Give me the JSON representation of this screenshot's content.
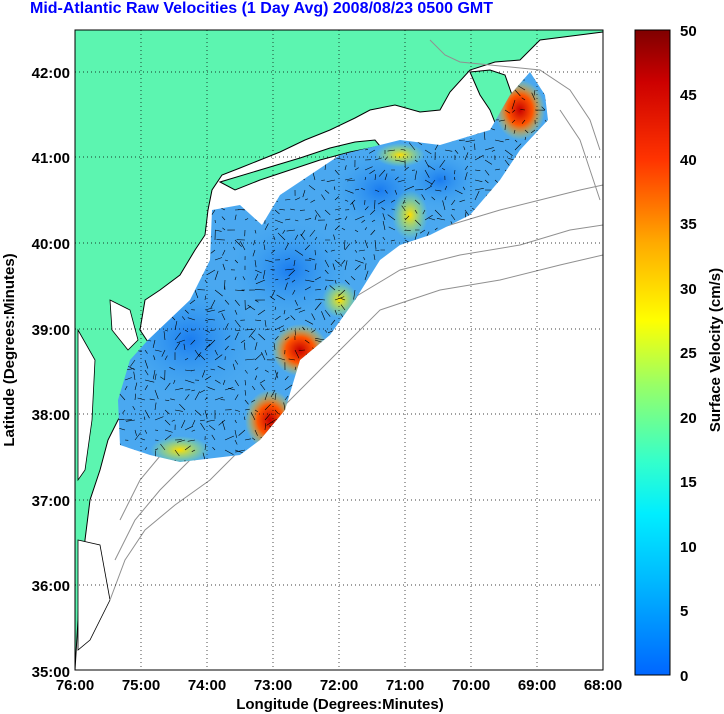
{
  "title": "Mid-Atlantic Raw Velocities (1 Day Avg) 2008/08/23 0500 GMT",
  "map": {
    "xlabel": "Longitude (Degrees:Minutes)",
    "ylabel": "Latitude (Degrees:Minutes)",
    "x_ticks": [
      "76:00",
      "75:00",
      "74:00",
      "73:00",
      "72:00",
      "71:00",
      "70:00",
      "69:00",
      "68:00"
    ],
    "y_ticks": [
      "42:00",
      "41:00",
      "40:00",
      "39:00",
      "38:00",
      "37:00",
      "36:00",
      "35:00"
    ],
    "lon_range": [
      -76,
      -68
    ],
    "lat_range": [
      35,
      42.5
    ],
    "grid": "dotted",
    "land_color": "#5cf5b0",
    "ocean_color": "#ffffff",
    "bathymetry_color": "#909090"
  },
  "colorbar": {
    "label": "Surface Velocity (cm/s)",
    "ticks": [
      "50",
      "45",
      "40",
      "35",
      "30",
      "25",
      "20",
      "15",
      "10",
      "5",
      "0"
    ],
    "range": [
      0,
      50
    ],
    "colors": [
      "#0066ff",
      "#00ccff",
      "#00ffcc",
      "#66ff66",
      "#ffff00",
      "#ffaa00",
      "#ff3300",
      "#cc0000",
      "#7f0000"
    ]
  }
}
